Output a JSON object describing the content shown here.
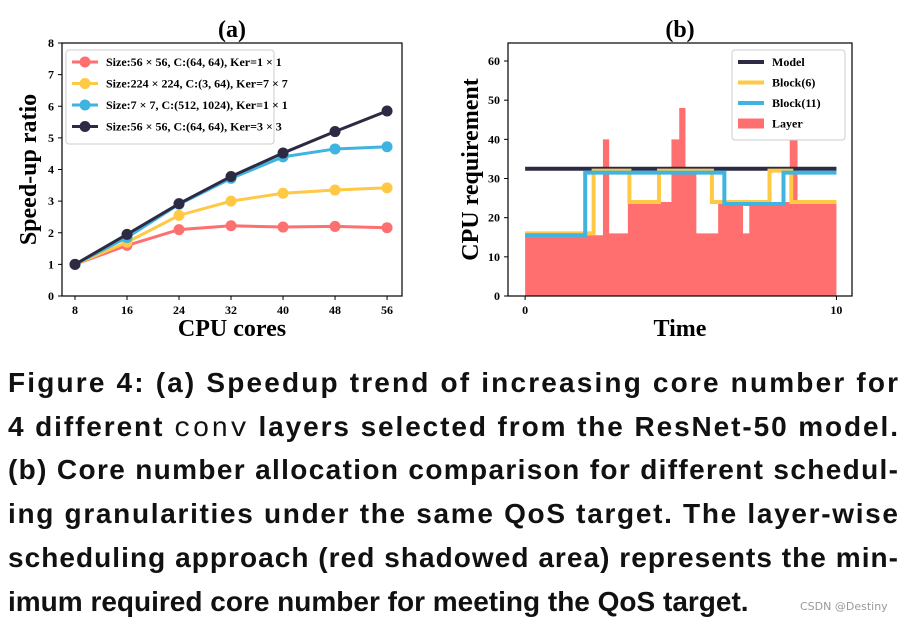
{
  "chart_data": [
    {
      "type": "line",
      "title": "(a)",
      "xlabel": "CPU cores",
      "ylabel": "Speed-up ratio",
      "x": [
        8,
        16,
        24,
        32,
        40,
        48,
        56
      ],
      "xlim": [
        6,
        58.3
      ],
      "ylim": [
        0,
        8
      ],
      "xticks": [
        8,
        16,
        24,
        32,
        40,
        48,
        56
      ],
      "yticks": [
        0,
        1,
        2,
        3,
        4,
        5,
        6,
        7,
        8
      ],
      "legend": "upper left",
      "markers": true,
      "series": [
        {
          "name": "Size:56 × 56, C:(64, 64), Ker=1 × 1",
          "color": "#fe6f6f",
          "values": [
            1,
            1.6,
            2.1,
            2.22,
            2.18,
            2.2,
            2.16
          ]
        },
        {
          "name": "Size:224 × 224, C:(3, 64), Ker=7 × 7",
          "color": "#ffc845",
          "values": [
            1,
            1.7,
            2.55,
            3.0,
            3.25,
            3.35,
            3.42
          ]
        },
        {
          "name": "Size:7 × 7, C:(512, 1024), Ker=1 × 1",
          "color": "#3fb4e0",
          "values": [
            1,
            1.85,
            2.9,
            3.72,
            4.4,
            4.65,
            4.72
          ]
        },
        {
          "name": "Size:56 × 56, C:(64, 64), Ker=3 × 3",
          "color": "#2d2a44",
          "values": [
            1,
            1.95,
            2.92,
            3.78,
            4.52,
            5.2,
            5.85
          ]
        }
      ]
    },
    {
      "type": "step",
      "title": "(b)",
      "xlabel": "Time",
      "ylabel": "CPU requirement",
      "xlim": [
        -0.55,
        10.5
      ],
      "ylim": [
        0,
        64.6
      ],
      "xticks": [
        0,
        10
      ],
      "yticks": [
        0,
        10,
        20,
        30,
        40,
        50,
        60
      ],
      "legend": "upper right",
      "series": [
        {
          "name": "Model",
          "color": "#2d2a44",
          "x": [
            0,
            10
          ],
          "values": [
            32.5,
            32.5
          ]
        },
        {
          "name": "Block(6)",
          "color": "#ffc845",
          "x": [
            0,
            2.2,
            3.35,
            4.3,
            6.0,
            7.85,
            8.55,
            10
          ],
          "values": [
            16,
            32,
            24,
            32,
            24,
            32,
            24,
            24
          ]
        },
        {
          "name": "Block(11)",
          "color": "#3fb4e0",
          "x": [
            0,
            1.93,
            6.4,
            8.3,
            10
          ],
          "values": [
            15.5,
            31.5,
            23.5,
            31.5,
            31.5
          ]
        },
        {
          "name": "Layer",
          "color": "#ff6f6f",
          "fill": true,
          "x": [
            0,
            2.5,
            2.7,
            3.3,
            4.7,
            4.95,
            5.15,
            5.5,
            6.2,
            7.0,
            7.2,
            8.5,
            8.75,
            10
          ],
          "values": [
            15.5,
            40,
            16,
            24,
            40,
            48,
            32,
            16,
            24,
            16,
            24,
            40,
            24,
            24
          ]
        }
      ]
    }
  ],
  "caption": [
    [
      "Figure 4:  (a) Speedup trend of increasing core number for"
    ],
    [
      "4 different ",
      "conv",
      " layers selected from the ResNet-50 model."
    ],
    [
      "(b) Core number allocation comparison for different schedul-"
    ],
    [
      "ing granularities under the same QoS target.  The layer-wise"
    ],
    [
      "scheduling approach (red shadowed area) represents the min-"
    ],
    [
      "imum required core number for meeting the QoS target."
    ]
  ],
  "watermark": "CSDN @Destiny"
}
